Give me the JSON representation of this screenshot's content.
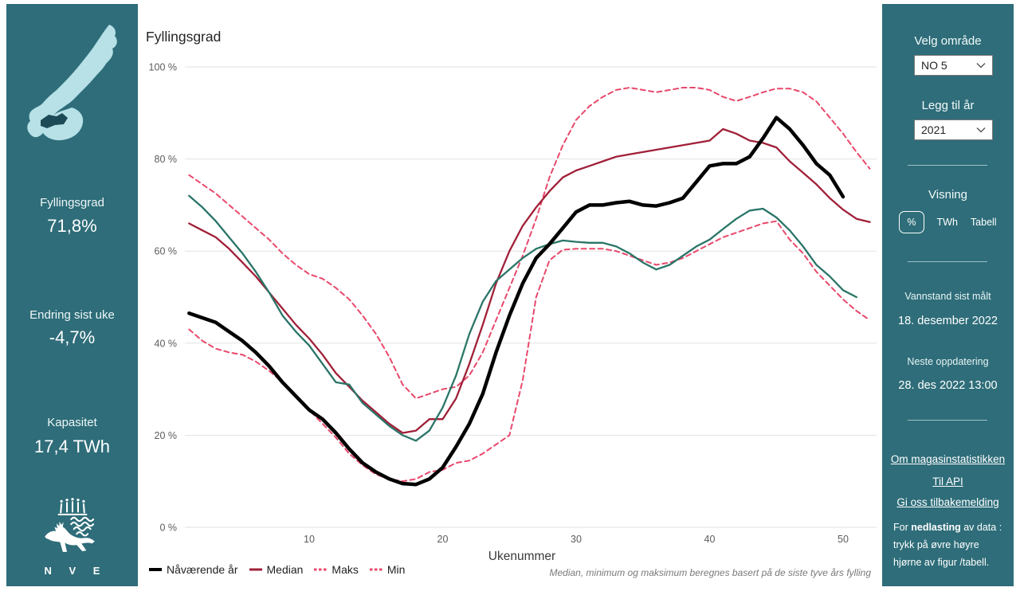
{
  "colors": {
    "panel_bg": "#2e6d79",
    "map_light": "#b7e0e7",
    "map_dark_region": "#1d4a57",
    "gridline": "#e2e2e2",
    "axis_text": "#5c5c5c",
    "current_line": "#000000",
    "median_line": "#a02038",
    "minmax_line": "#e8486b",
    "year2021_line": "#2a7568"
  },
  "left_panel": {
    "fyllingsgrad_label": "Fyllingsgrad",
    "fyllingsgrad_value": "71,8%",
    "endring_label": "Endring sist uke",
    "endring_value": "-4,7%",
    "kapasitet_label": "Kapasitet",
    "kapasitet_value": "17,4 TWh",
    "nve_logo_text": "N V E"
  },
  "right_panel": {
    "velg_omrade_label": "Velg område",
    "omrade_value": "NO 5",
    "legg_til_ar_label": "Legg til år",
    "ar_value": "2021",
    "visning_label": "Visning",
    "visning_options": {
      "percent": "%",
      "twh": "TWh",
      "tabell": "Tabell"
    },
    "vannstand_label": "Vannstand sist målt",
    "vannstand_value": "18. desember 2022",
    "neste_label": "Neste oppdatering",
    "neste_value": "28. des 2022 13:00",
    "links": [
      "Om magasinstatistikken",
      "Til API",
      "Gi oss tilbakemelding"
    ],
    "download_note": {
      "line1_pre": "For ",
      "line1_bold": "nedlasting",
      "line1_post": " av data :",
      "line2": "trykk på øvre høyre",
      "line3": "hjørne av figur /tabell."
    }
  },
  "chart_data": {
    "type": "line",
    "title": "Fyllingsgrad",
    "xlabel": "Ukenummer",
    "footnote": "Median, minimum og maksimum beregnes basert på de siste tyve års fylling",
    "xlim": [
      1,
      53
    ],
    "ylim": [
      0,
      100
    ],
    "grid": "horizontal",
    "legend_position": "bottom-left",
    "x_ticks": [
      10,
      20,
      30,
      40,
      50
    ],
    "y_ticks": [
      {
        "value": 0,
        "label": "0 %"
      },
      {
        "value": 20,
        "label": "20 %"
      },
      {
        "value": 40,
        "label": "40 %"
      },
      {
        "value": 60,
        "label": "60 %"
      },
      {
        "value": 80,
        "label": "80 %"
      },
      {
        "value": 100,
        "label": "100 %"
      }
    ],
    "legend_order": [
      "current",
      "median",
      "maks",
      "min"
    ],
    "series": [
      {
        "id": "maks",
        "name": "Maks",
        "color": "#e8486b",
        "dash": true,
        "width": 2,
        "start_week": 1,
        "values": [
          76.5,
          74.5,
          72.5,
          70,
          67.5,
          65,
          62.5,
          59.5,
          57,
          55,
          54,
          52,
          49.5,
          46,
          42,
          37,
          31,
          28,
          29,
          30,
          30.5,
          33,
          38,
          45,
          52,
          59,
          67,
          76,
          83,
          88.5,
          91.5,
          93.5,
          95,
          95.5,
          95,
          94.5,
          95,
          95.5,
          95.5,
          95,
          93.5,
          92.6,
          93.5,
          94.5,
          95.3,
          95.3,
          94.5,
          92.5,
          89,
          85.5,
          81.5,
          77.9
        ]
      },
      {
        "id": "min",
        "name": "Min",
        "color": "#e8486b",
        "dash": true,
        "width": 2,
        "start_week": 1,
        "values": [
          43,
          40.5,
          38.8,
          38,
          37.5,
          36,
          34,
          31.5,
          28.5,
          25.5,
          22.5,
          19.5,
          16,
          13.5,
          11.5,
          10.5,
          10,
          10.5,
          12,
          12.5,
          14,
          14.5,
          16,
          18,
          20,
          32,
          50,
          58,
          60.3,
          60.5,
          60.5,
          60.5,
          60,
          59,
          58,
          57,
          57.5,
          58.5,
          60,
          61.5,
          63,
          64,
          65,
          66,
          66.5,
          62.5,
          59.5,
          55.5,
          52.5,
          49.5,
          47,
          45
        ]
      },
      {
        "id": "median",
        "name": "Median",
        "color": "#a02038",
        "dash": false,
        "width": 2.3,
        "start_week": 1,
        "values": [
          66,
          64.5,
          63,
          60.5,
          57.5,
          54.5,
          51,
          47.5,
          44,
          41,
          37.5,
          33.5,
          30.5,
          27.5,
          25,
          22.5,
          20.5,
          21,
          23.5,
          23.5,
          28,
          35.5,
          44,
          53,
          60,
          65.5,
          69.5,
          73,
          76,
          77.5,
          78.5,
          79.5,
          80.5,
          81,
          81.5,
          82,
          82.5,
          83,
          83.5,
          84,
          86.5,
          85.5,
          84,
          83.5,
          82.5,
          79.5,
          77,
          74.5,
          71.5,
          69,
          67,
          66.3
        ]
      },
      {
        "id": "year2021",
        "name": "2021",
        "color": "#2a7568",
        "dash": false,
        "width": 2.3,
        "start_week": 1,
        "in_legend": false,
        "values": [
          72,
          69.5,
          66.5,
          63,
          59.5,
          55.5,
          51,
          46,
          42.5,
          39.5,
          35.5,
          31.5,
          31,
          27,
          24.5,
          22,
          20,
          18.8,
          21,
          26,
          33,
          42,
          49,
          53.5,
          56,
          58.5,
          60.5,
          61.5,
          62.3,
          62,
          61.8,
          61.8,
          61,
          59.5,
          57.5,
          56,
          57,
          59,
          61,
          62.5,
          64.8,
          67,
          68.8,
          69.2,
          67.3,
          64.5,
          61,
          57,
          54.5,
          51.5,
          50
        ]
      },
      {
        "id": "current",
        "name": "Nåværende år",
        "color": "#000000",
        "dash": false,
        "width": 4.5,
        "start_week": 1,
        "values": [
          46.5,
          45.5,
          44.5,
          42.5,
          40.5,
          38,
          35,
          31.5,
          28.5,
          25.5,
          23.5,
          20.5,
          17,
          14,
          12,
          10.5,
          9.5,
          9.3,
          10.5,
          13,
          17.5,
          22.5,
          29,
          38,
          46,
          53,
          58.5,
          61.5,
          65,
          68.5,
          70,
          70,
          70.5,
          70.8,
          70,
          69.8,
          70.5,
          71.5,
          75,
          78.5,
          79,
          79,
          80.5,
          84.5,
          89,
          86.5,
          83,
          79,
          76.5,
          71.8
        ]
      }
    ]
  }
}
